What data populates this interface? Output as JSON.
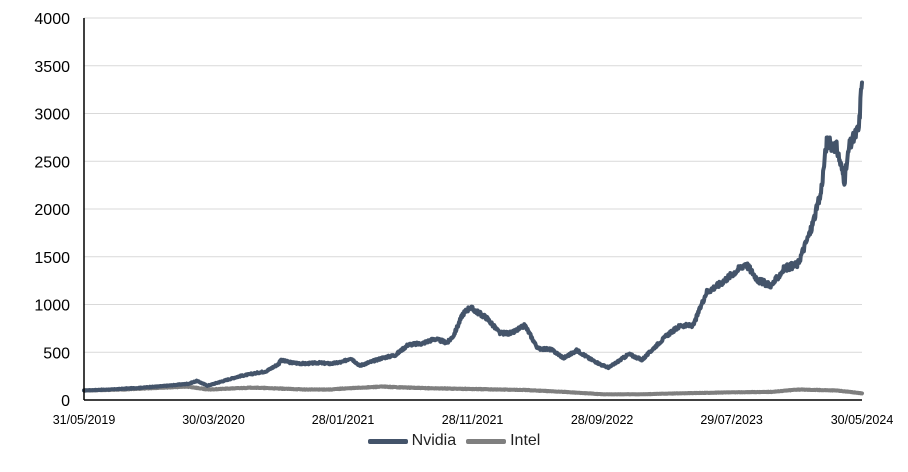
{
  "chart_data": {
    "type": "line",
    "title": "",
    "xlabel": "",
    "ylabel": "",
    "ylim": [
      0,
      4000
    ],
    "yticks": [
      0,
      500,
      1000,
      1500,
      2000,
      2500,
      3000,
      3500,
      4000
    ],
    "xlim": [
      "31/05/2019",
      "30/05/2024"
    ],
    "xticks": [
      "31/05/2019",
      "30/03/2020",
      "28/01/2021",
      "28/11/2021",
      "28/09/2022",
      "29/07/2023",
      "30/05/2024"
    ],
    "grid": "horizontal",
    "legend": "bottom-center",
    "series": [
      {
        "name": "Nvidia",
        "color": "#44546a",
        "points": [
          [
            "31/05/2019",
            100
          ],
          [
            "31/07/2019",
            110
          ],
          [
            "30/09/2019",
            125
          ],
          [
            "30/11/2019",
            145
          ],
          [
            "31/01/2020",
            170
          ],
          [
            "20/02/2020",
            200
          ],
          [
            "16/03/2020",
            150
          ],
          [
            "30/04/2020",
            210
          ],
          [
            "31/05/2020",
            250
          ],
          [
            "30/06/2020",
            275
          ],
          [
            "31/07/2020",
            300
          ],
          [
            "31/08/2020",
            380
          ],
          [
            "02/09/2020",
            420
          ],
          [
            "30/09/2020",
            390
          ],
          [
            "31/10/2020",
            380
          ],
          [
            "30/11/2020",
            390
          ],
          [
            "31/12/2020",
            380
          ],
          [
            "28/01/2021",
            400
          ],
          [
            "15/02/2021",
            440
          ],
          [
            "08/03/2021",
            360
          ],
          [
            "30/04/2021",
            440
          ],
          [
            "31/05/2021",
            470
          ],
          [
            "30/06/2021",
            580
          ],
          [
            "31/07/2021",
            590
          ],
          [
            "31/08/2021",
            640
          ],
          [
            "30/09/2021",
            600
          ],
          [
            "15/10/2021",
            680
          ],
          [
            "05/11/2021",
            900
          ],
          [
            "22/11/2021",
            970
          ],
          [
            "31/12/2021",
            860
          ],
          [
            "31/01/2022",
            700
          ],
          [
            "28/02/2022",
            700
          ],
          [
            "31/03/2022",
            780
          ],
          [
            "30/04/2022",
            540
          ],
          [
            "31/05/2022",
            530
          ],
          [
            "30/06/2022",
            440
          ],
          [
            "31/07/2022",
            520
          ],
          [
            "31/08/2022",
            430
          ],
          [
            "30/09/2022",
            360
          ],
          [
            "14/10/2022",
            340
          ],
          [
            "30/11/2022",
            480
          ],
          [
            "31/12/2022",
            420
          ],
          [
            "31/01/2023",
            560
          ],
          [
            "28/02/2023",
            680
          ],
          [
            "31/03/2023",
            780
          ],
          [
            "30/04/2023",
            780
          ],
          [
            "31/05/2023",
            1130
          ],
          [
            "30/06/2023",
            1210
          ],
          [
            "31/07/2023",
            1320
          ],
          [
            "31/08/2023",
            1430
          ],
          [
            "30/09/2023",
            1250
          ],
          [
            "31/10/2023",
            1200
          ],
          [
            "30/11/2023",
            1380
          ],
          [
            "31/12/2023",
            1420
          ],
          [
            "31/01/2024",
            1780
          ],
          [
            "23/02/2024",
            2150
          ],
          [
            "08/03/2024",
            2700
          ],
          [
            "31/03/2024",
            2650
          ],
          [
            "19/04/2024",
            2300
          ],
          [
            "30/04/2024",
            2650
          ],
          [
            "23/05/2024",
            2850
          ],
          [
            "30/05/2024",
            3400
          ]
        ]
      },
      {
        "name": "Intel",
        "color": "#7f7f7f",
        "points": [
          [
            "31/05/2019",
            100
          ],
          [
            "31/08/2019",
            110
          ],
          [
            "30/11/2019",
            130
          ],
          [
            "31/01/2020",
            140
          ],
          [
            "16/03/2020",
            110
          ],
          [
            "30/06/2020",
            130
          ],
          [
            "31/10/2020",
            110
          ],
          [
            "31/12/2020",
            110
          ],
          [
            "28/01/2021",
            120
          ],
          [
            "30/04/2021",
            140
          ],
          [
            "31/07/2021",
            125
          ],
          [
            "30/11/2021",
            115
          ],
          [
            "31/03/2022",
            105
          ],
          [
            "30/06/2022",
            85
          ],
          [
            "30/09/2022",
            60
          ],
          [
            "31/12/2022",
            60
          ],
          [
            "31/03/2023",
            70
          ],
          [
            "29/07/2023",
            80
          ],
          [
            "31/10/2023",
            85
          ],
          [
            "31/12/2023",
            110
          ],
          [
            "31/03/2024",
            100
          ],
          [
            "30/05/2024",
            70
          ]
        ]
      }
    ]
  }
}
